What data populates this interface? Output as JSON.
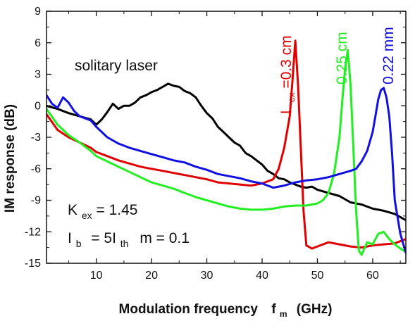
{
  "chart_data": {
    "type": "line",
    "xlabel": "Modulation frequency",
    "xlabel_symbol": "f",
    "xlabel_symbol_sub": "m",
    "xlabel_unit": "(GHz)",
    "ylabel": "IM response  (dB)",
    "xlim": [
      1,
      66
    ],
    "ylim": [
      -15,
      9
    ],
    "x_ticks": [
      10,
      20,
      30,
      40,
      50,
      60
    ],
    "y_ticks": [
      -15,
      -12,
      -9,
      -6,
      -3,
      0,
      3,
      6,
      9
    ],
    "grid": false,
    "colors": {
      "axis": "#111111",
      "black": "#000000",
      "red": "#e00000",
      "green": "#22ee22",
      "blue": "#1010e0"
    },
    "annotations": {
      "solitary": "solitary laser",
      "lex_prefix": "L",
      "lex_sub": "ex",
      "lex_value": "=0.3 cm",
      "green_label": "0.25 cm",
      "blue_label": "0.22 mm",
      "kex_prefix": "K",
      "kex_sub": "ex",
      "kex_value": "= 1.45",
      "ib_prefix": "I",
      "ib_sub": "b",
      "ib_mid": "= 5I",
      "ith_sub": "th",
      "m_text": "m = 0.1"
    },
    "series": [
      {
        "color": "black",
        "x": [
          1,
          3,
          5,
          7,
          9,
          10,
          11,
          12,
          13,
          14,
          15,
          16,
          17,
          18,
          19,
          20,
          21,
          22,
          23,
          24,
          25,
          26,
          27,
          28,
          29,
          30,
          31,
          32,
          33,
          34,
          35,
          36,
          37,
          38,
          39,
          40,
          41,
          42,
          43,
          44,
          45,
          46,
          47,
          48,
          49,
          50,
          52,
          54,
          56,
          58,
          60,
          62,
          64,
          66
        ],
        "y": [
          0.0,
          -0.3,
          -0.7,
          -1.0,
          -1.3,
          -1.8,
          -1.3,
          -0.6,
          0.2,
          -0.3,
          0.0,
          0.0,
          0.3,
          0.8,
          1.0,
          1.3,
          1.5,
          1.8,
          2.1,
          1.9,
          1.8,
          1.4,
          1.2,
          0.8,
          0.0,
          -0.7,
          -1.2,
          -2.0,
          -2.5,
          -3.0,
          -3.5,
          -3.8,
          -4.5,
          -4.8,
          -5.2,
          -5.6,
          -6.2,
          -6.5,
          -6.9,
          -7.0,
          -7.3,
          -7.5,
          -7.7,
          -7.8,
          -7.7,
          -8.0,
          -8.3,
          -8.6,
          -9.2,
          -9.4,
          -9.8,
          -10.0,
          -10.3,
          -10.9
        ]
      },
      {
        "color": "red",
        "x": [
          1,
          3,
          5,
          7,
          9,
          10,
          12,
          14,
          16,
          18,
          20,
          22,
          24,
          26,
          28,
          30,
          32,
          34,
          36,
          38,
          40,
          42,
          43,
          44,
          45,
          45.5,
          46,
          46.5,
          47,
          47.5,
          48,
          49,
          50,
          52,
          54,
          56,
          58,
          60,
          62,
          64,
          66
        ],
        "y": [
          -0.8,
          -2.3,
          -3.0,
          -3.5,
          -4.0,
          -4.4,
          -4.8,
          -5.2,
          -5.5,
          -5.8,
          -6.0,
          -6.2,
          -6.4,
          -6.6,
          -6.8,
          -7.0,
          -7.3,
          -7.4,
          -7.5,
          -7.6,
          -7.4,
          -7.0,
          -6.0,
          -4.0,
          -1.0,
          2.5,
          6.2,
          2.0,
          -4.0,
          -10.0,
          -13.3,
          -13.6,
          -13.4,
          -13.0,
          -13.2,
          -13.4,
          -13.5,
          -13.3,
          -13.2,
          -13.1,
          -12.7
        ]
      },
      {
        "color": "green",
        "x": [
          1,
          3,
          5,
          7,
          9,
          10,
          12,
          14,
          16,
          18,
          20,
          22,
          24,
          26,
          28,
          30,
          32,
          34,
          36,
          38,
          40,
          42,
          44,
          46,
          48,
          50,
          51,
          52,
          53,
          54,
          54.5,
          55,
          55.5,
          56,
          56.5,
          57,
          57.5,
          58,
          59,
          60,
          61,
          62,
          63,
          64,
          65,
          66
        ],
        "y": [
          -0.3,
          -1.8,
          -2.8,
          -3.5,
          -4.3,
          -4.8,
          -5.3,
          -5.8,
          -6.3,
          -6.8,
          -7.3,
          -7.6,
          -7.9,
          -8.3,
          -8.7,
          -9.0,
          -9.3,
          -9.6,
          -9.8,
          -9.9,
          -9.9,
          -9.8,
          -9.6,
          -9.5,
          -9.5,
          -9.3,
          -9.0,
          -8.3,
          -6.5,
          -3.0,
          0.5,
          3.5,
          5.3,
          2.0,
          -4.0,
          -10.0,
          -13.8,
          -14.2,
          -13.0,
          -13.2,
          -12.2,
          -12.0,
          -12.7,
          -13.2,
          -13.6,
          -13.9
        ]
      },
      {
        "color": "blue",
        "x": [
          1,
          2,
          3,
          4,
          5,
          6,
          7,
          8,
          9,
          10,
          12,
          14,
          16,
          18,
          20,
          22,
          24,
          26,
          28,
          30,
          32,
          34,
          36,
          38,
          40,
          42,
          44,
          46,
          48,
          50,
          52,
          54,
          56,
          57,
          58,
          59,
          60,
          60.5,
          61,
          61.5,
          62,
          62.5,
          63,
          63.5,
          64,
          65,
          66
        ],
        "y": [
          1.0,
          0.2,
          -0.2,
          0.8,
          0.3,
          -0.5,
          -1.0,
          -1.2,
          -1.4,
          -2.0,
          -3.0,
          -3.6,
          -4.0,
          -4.3,
          -4.6,
          -4.9,
          -5.2,
          -5.4,
          -5.8,
          -6.1,
          -6.5,
          -6.7,
          -6.9,
          -7.2,
          -7.4,
          -7.8,
          -7.6,
          -7.3,
          -7.1,
          -7.0,
          -6.8,
          -6.5,
          -6.2,
          -6.0,
          -5.3,
          -4.3,
          -2.5,
          -1.0,
          0.6,
          1.5,
          1.7,
          0.8,
          -1.0,
          -4.5,
          -9.0,
          -12.2,
          -14.0
        ]
      }
    ]
  }
}
